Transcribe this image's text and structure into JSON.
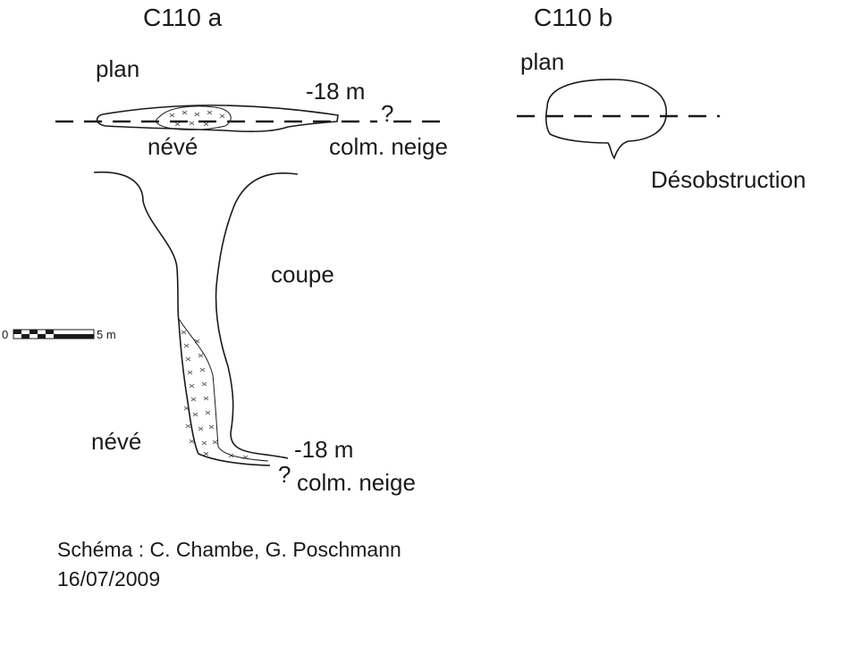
{
  "cave_a": {
    "title": "C110 a",
    "plan_label": "plan",
    "neve_plan_label": "névé",
    "depth_plan": "-18 m",
    "question_plan": "?",
    "colm_plan": "colm. neige",
    "coupe_label": "coupe",
    "neve_section_label": "névé",
    "depth_section": "-18 m",
    "question_section": "?",
    "colm_section": "colm. neige"
  },
  "cave_b": {
    "title": "C110 b",
    "plan_label": "plan",
    "note": "Désobstruction"
  },
  "scale_bar": {
    "start_label": "0",
    "end_label": "5 m"
  },
  "credit": {
    "authors": "Schéma : C. Chambe, G. Poschmann",
    "date": "16/07/2009"
  }
}
